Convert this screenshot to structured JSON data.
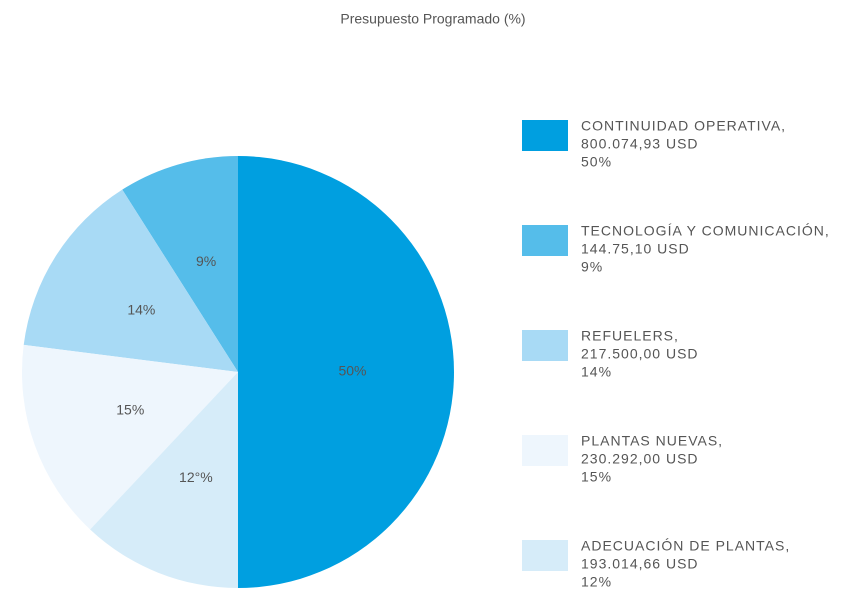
{
  "chart_data": {
    "type": "pie",
    "title": "Presupuesto Programado (%)",
    "series": [
      {
        "name": "CONTINUIDAD OPERATIVA,",
        "color": "#009fe0",
        "values": [
          50
        ]
      },
      {
        "name": "TECNOLOGÍA Y COMUNICACIÓN,",
        "color": "#55bdea",
        "values": [
          9
        ]
      },
      {
        "name": "REFUELERS,",
        "color": "#a8daf5",
        "values": [
          14
        ]
      },
      {
        "name": "PLANTAS NUEVAS,",
        "color": "#eef6fd",
        "values": [
          15
        ]
      },
      {
        "name": "ADECUACIÓN DE PLANTAS,",
        "color": "#d6ecf9",
        "values": [
          12
        ]
      }
    ],
    "value_labels": [
      "50%",
      "9%",
      "14%",
      "15%",
      "12°%"
    ],
    "amounts": [
      "800.074,93 USD",
      "144.75,10 USD",
      "217.500,00 USD",
      "230.292,00 USD",
      "193.014,66 USD"
    ],
    "legend_value_labels": [
      "50%",
      "9%",
      "14%",
      "15%",
      "12%"
    ]
  }
}
